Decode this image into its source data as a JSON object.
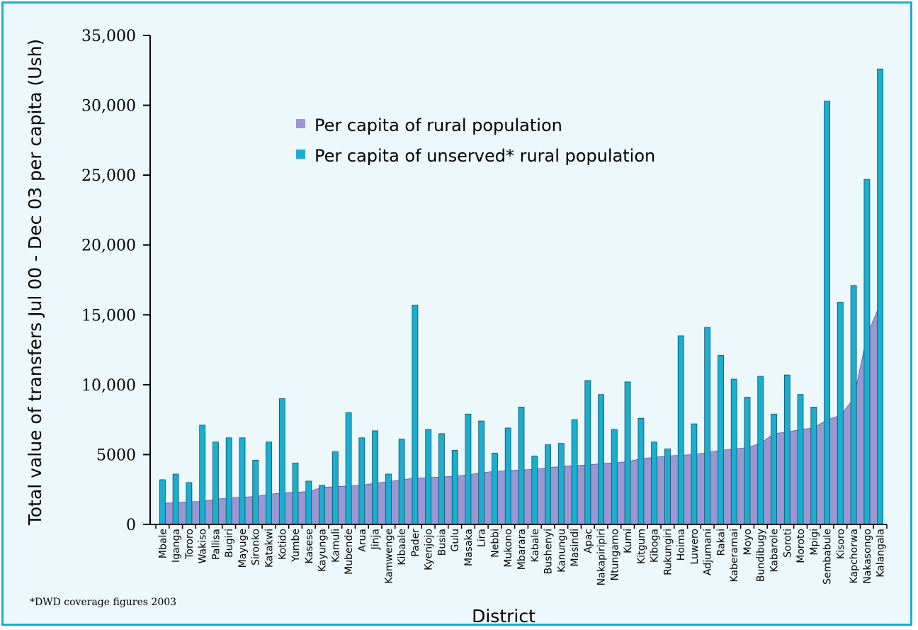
{
  "chart_data": {
    "type": "bar",
    "xlabel": "District",
    "ylabel": "Total value of transfers Jul 00 - Dec 03 per capita (Ush)",
    "ylim": [
      0,
      35000
    ],
    "yticks": [
      {
        "value": 0,
        "label": "0"
      },
      {
        "value": 5000,
        "label": "5000"
      },
      {
        "value": 10000,
        "label": "10,000"
      },
      {
        "value": 15000,
        "label": "15,000"
      },
      {
        "value": 20000,
        "label": "20,000"
      },
      {
        "value": 25000,
        "label": "25,000"
      },
      {
        "value": 30000,
        "label": "30,000"
      },
      {
        "value": 35000,
        "label": "35,000"
      }
    ],
    "legend_position": "top-center",
    "categories": [
      "Mbale",
      "Iganga",
      "Tororo",
      "Wakiso",
      "Pallisa",
      "Bugiri",
      "Mayuge",
      "Sironko",
      "Katakwi",
      "Kotido",
      "Yumbe",
      "Kasese",
      "Kayunga",
      "Kamuli",
      "Mubende",
      "Arua",
      "Jinja",
      "Kamwenge",
      "Kibaale",
      "Pader",
      "Kyenjojo",
      "Busia",
      "Gulu",
      "Masaka",
      "Lira",
      "Nebbi",
      "Mukono",
      "Mbarara",
      "Kabale",
      "Bushenyi",
      "Kanungu",
      "Masindi",
      "Apac",
      "Nakapiripiri",
      "Ntungamo",
      "Kumi",
      "Kitgum",
      "Kiboga",
      "Rukungiri",
      "Hoima",
      "Luwero",
      "Adjumani",
      "Rakai",
      "Kaberamai",
      "Moyo",
      "Bundibugy",
      "Kabarole",
      "Soroti",
      "Moroto",
      "Mpigi",
      "Sembabule",
      "Kisoro",
      "Kapchorwa",
      "Nakasongo",
      "Kalangala"
    ],
    "series": [
      {
        "name": "Per capita of rural population",
        "type": "area",
        "color": "#9b97d2",
        "values": [
          1500,
          1560,
          1620,
          1650,
          1800,
          1900,
          1950,
          2000,
          2150,
          2250,
          2300,
          2350,
          2650,
          2700,
          2750,
          2800,
          2950,
          3050,
          3200,
          3300,
          3350,
          3400,
          3450,
          3550,
          3700,
          3800,
          3850,
          3900,
          3950,
          4050,
          4150,
          4200,
          4250,
          4350,
          4400,
          4500,
          4700,
          4800,
          4900,
          4950,
          5000,
          5150,
          5300,
          5400,
          5500,
          5800,
          6500,
          6600,
          6800,
          6900,
          7500,
          7800,
          9000,
          13500,
          15800
        ]
      },
      {
        "name": "Per capita of unserved* rural population",
        "type": "bar",
        "color": "#1aaed0",
        "values": [
          3200,
          3600,
          3000,
          7100,
          5900,
          6200,
          6200,
          4600,
          5900,
          9000,
          4400,
          3100,
          2800,
          5200,
          8000,
          6200,
          6700,
          3600,
          6100,
          15700,
          6800,
          6500,
          5300,
          7900,
          7400,
          5100,
          6900,
          8400,
          4900,
          5700,
          5800,
          7500,
          10300,
          9300,
          6800,
          10200,
          7600,
          5900,
          5400,
          13500,
          7200,
          14100,
          12100,
          10400,
          9100,
          10600,
          7900,
          10700,
          9300,
          8400,
          30300,
          15900,
          17100,
          24700,
          32600
        ]
      }
    ]
  },
  "footnote": "*DWD coverage figures 2003",
  "colors": {
    "frame": "#1aaed0",
    "plot_background": "#ecf8fb"
  }
}
